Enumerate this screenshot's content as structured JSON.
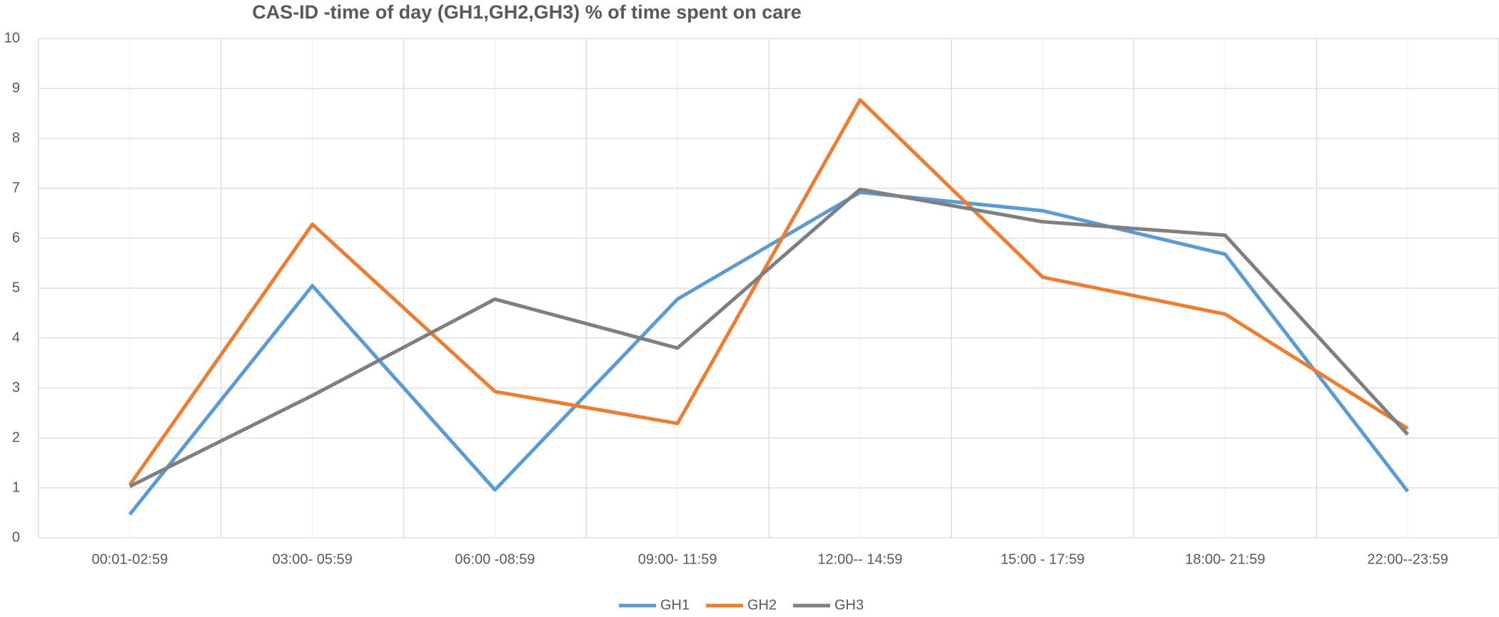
{
  "chart_data": {
    "type": "line",
    "title": "CAS-ID -time of day (GH1,GH2,GH3) % of time spent on care",
    "categories": [
      "00:01-02:59",
      "03:00- 05:59",
      "06:00 -08:59",
      "09:00- 11:59",
      "12:00-- 14:59",
      "15:00 - 17:59",
      "18:00- 21:59",
      "22:00--23:59"
    ],
    "series": [
      {
        "name": "GH1",
        "color": "#5b9bd5",
        "values": [
          0.47,
          5.05,
          0.96,
          4.78,
          6.92,
          6.55,
          5.68,
          0.93
        ]
      },
      {
        "name": "GH2",
        "color": "#ed7d31",
        "values": [
          1.06,
          6.28,
          2.93,
          2.29,
          8.77,
          5.22,
          4.48,
          2.19
        ]
      },
      {
        "name": "GH3",
        "color": "#7f7f7f",
        "values": [
          1.03,
          2.85,
          4.78,
          3.8,
          6.98,
          6.33,
          6.06,
          2.07
        ]
      }
    ],
    "ylim": [
      0,
      10
    ],
    "yticks": [
      0,
      1,
      2,
      3,
      4,
      5,
      6,
      7,
      8,
      9,
      10
    ],
    "grid": true,
    "legend": "bottom"
  }
}
